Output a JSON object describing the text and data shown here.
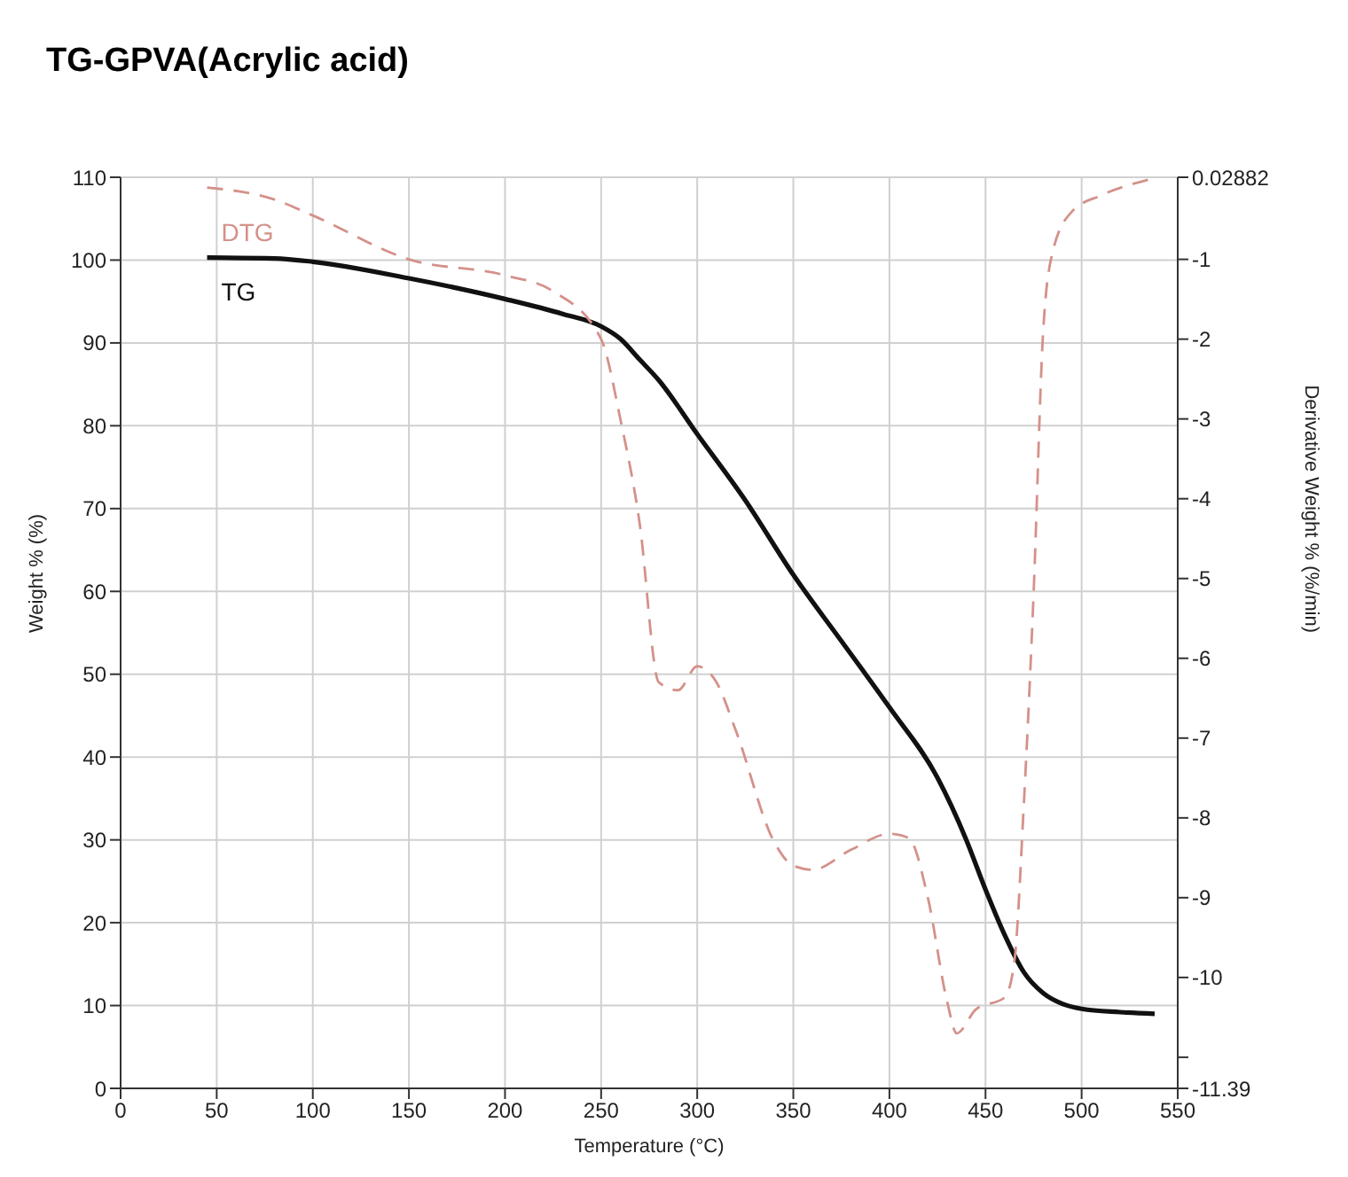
{
  "chart_data": {
    "type": "line",
    "title": "TG-GPVA(Acrylic acid)",
    "xlabel": "Temperature (°C)",
    "ylabel": "Weight % (%)",
    "y2label": "Derivative Weight % (%/min)",
    "xlim": [
      0,
      550
    ],
    "xticks": [
      0,
      50,
      100,
      150,
      200,
      250,
      300,
      350,
      400,
      450,
      500,
      550
    ],
    "ylim": [
      0,
      110
    ],
    "yticks": [
      0,
      10,
      20,
      30,
      40,
      50,
      60,
      70,
      80,
      90,
      100,
      110
    ],
    "y2lim": [
      -11.39,
      0.02882
    ],
    "y2ticks": [
      0.02882,
      -1,
      -2,
      -3,
      -4,
      -5,
      -6,
      -7,
      -8,
      -9,
      -10,
      {
        "value": -11,
        "label": null
      },
      -11.39
    ],
    "grid": true,
    "legend": false,
    "marker": "none",
    "series": [
      {
        "name": "TG",
        "color": "#111111",
        "line_style": "solid",
        "x": [
          45,
          80,
          100,
          150,
          200,
          230,
          250,
          260,
          270,
          280,
          300,
          325,
          350,
          375,
          400,
          425,
          440,
          450,
          460,
          470,
          480,
          490,
          500,
          520,
          538
        ],
        "values": [
          100.3,
          100.2,
          99.8,
          97.8,
          95.3,
          93.5,
          92,
          90.5,
          88,
          85.5,
          79,
          71,
          62,
          54,
          46,
          37.5,
          30,
          24,
          18.5,
          14,
          11.5,
          10.2,
          9.6,
          9.2,
          9
        ]
      },
      {
        "name": "DTG",
        "color": "#d4918a",
        "line_style": "dashed",
        "axis": "y2",
        "x": [
          45,
          80,
          100,
          150,
          200,
          225,
          250,
          260,
          270,
          280,
          290,
          300,
          310,
          320,
          340,
          350,
          360,
          380,
          400,
          410,
          420,
          430,
          435,
          445,
          460,
          465,
          470,
          475,
          480,
          485,
          495,
          510,
          535
        ],
        "values": [
          -0.1,
          -0.25,
          -0.45,
          -1,
          -1.2,
          -1.4,
          -2,
          -3,
          -4.3,
          -6.3,
          -6.4,
          -6.1,
          -6.3,
          -6.9,
          -8.3,
          -8.6,
          -8.65,
          -8.4,
          -8.2,
          -8.25,
          -9,
          -10.3,
          -10.7,
          -10.4,
          -10.25,
          -9.8,
          -7.8,
          -5.2,
          -1.9,
          -0.9,
          -0.4,
          -0.2,
          0
        ]
      }
    ]
  }
}
